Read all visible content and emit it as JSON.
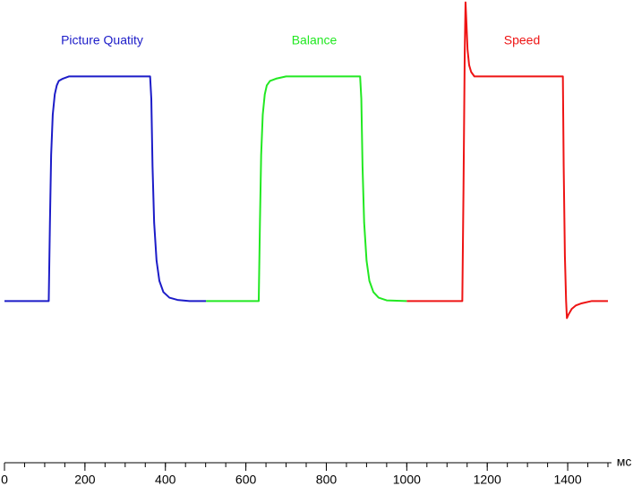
{
  "chart_data": {
    "type": "line",
    "x_label": "мс",
    "xlim": [
      0,
      1510
    ],
    "ylim": [
      -0.7,
      1.4
    ],
    "xticks": [
      0,
      200,
      400,
      600,
      800,
      1000,
      1200,
      1400
    ],
    "xminorticks": [
      0,
      50,
      100,
      150,
      200,
      250,
      300,
      350,
      400,
      450,
      500,
      550,
      600,
      650,
      700,
      750,
      800,
      850,
      900,
      950,
      1000,
      1050,
      1100,
      1150,
      1200,
      1250,
      1300,
      1350,
      1400,
      1450,
      1500
    ],
    "series": [
      {
        "name": "Picture Quatity",
        "color": "#1c1cc8",
        "x": [
          0,
          110,
          113,
          116,
          120,
          125,
          130,
          135,
          145,
          160,
          200,
          300,
          362,
          365,
          368,
          372,
          378,
          385,
          395,
          410,
          430,
          460,
          501
        ],
        "values": [
          0,
          0,
          0.35,
          0.65,
          0.83,
          0.92,
          0.96,
          0.98,
          0.99,
          1,
          1,
          1,
          1,
          0.9,
          0.6,
          0.35,
          0.18,
          0.09,
          0.04,
          0.015,
          0.005,
          0,
          0
        ]
      },
      {
        "name": "Balance",
        "color": "#22e822",
        "x": [
          501,
          600,
          632,
          635,
          638,
          642,
          647,
          652,
          660,
          675,
          700,
          800,
          884,
          887,
          890,
          894,
          900,
          907,
          917,
          930,
          950,
          1000
        ],
        "values": [
          0,
          0,
          0,
          0.35,
          0.65,
          0.83,
          0.92,
          0.96,
          0.98,
          0.99,
          1,
          1,
          1,
          0.9,
          0.6,
          0.35,
          0.18,
          0.09,
          0.04,
          0.015,
          0.003,
          0
        ]
      },
      {
        "name": "Speed",
        "color": "#ee1414",
        "x": [
          1000,
          1100,
          1138,
          1141,
          1144,
          1146,
          1148,
          1151,
          1155,
          1160,
          1168,
          1180,
          1250,
          1388,
          1390,
          1393,
          1396,
          1398,
          1402,
          1410,
          1420,
          1435,
          1460,
          1500
        ],
        "values": [
          0,
          0,
          0,
          0.5,
          1.1,
          1.33,
          1.25,
          1.12,
          1.05,
          1.02,
          1.0,
          1,
          1,
          1,
          0.6,
          0.2,
          0.0,
          -0.076,
          -0.06,
          -0.035,
          -0.02,
          -0.01,
          0,
          0
        ]
      }
    ]
  }
}
